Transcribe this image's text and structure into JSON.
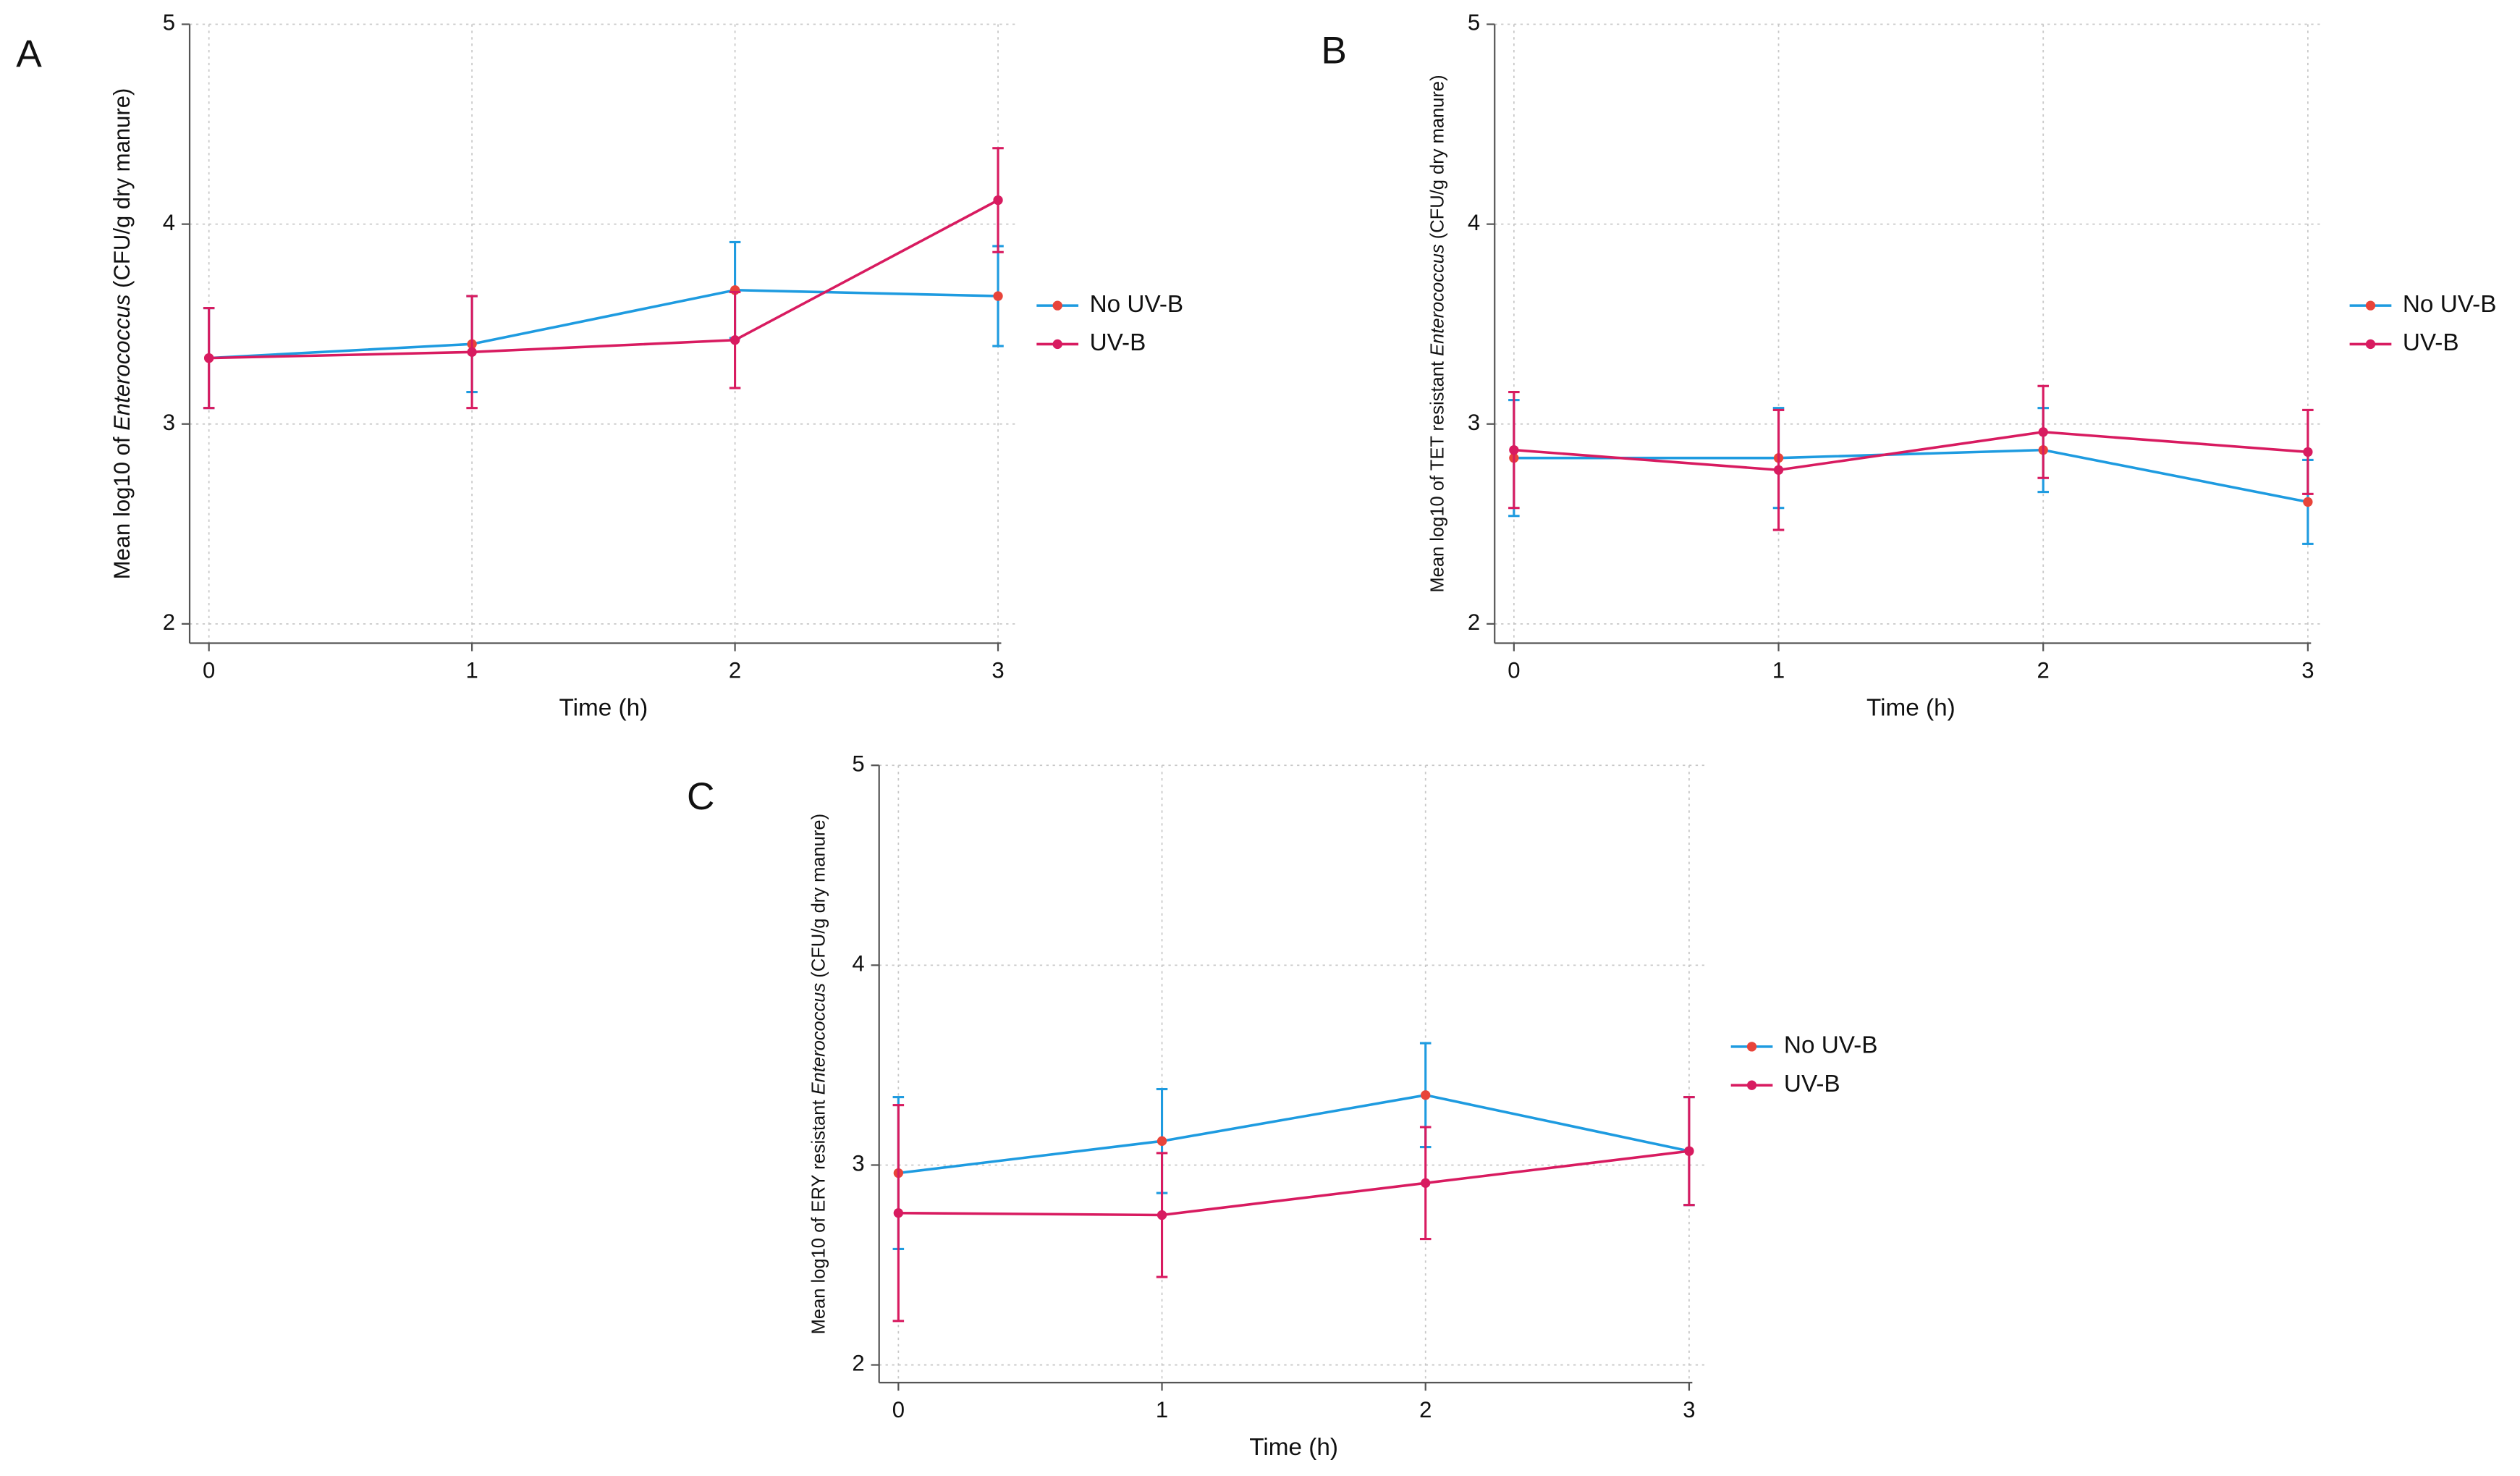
{
  "chart_data": [
    {
      "type": "line",
      "panel_label": "A",
      "ylabel": [
        "Mean log10 of ",
        "Enterococcus",
        " (CFU/g dry manure)"
      ],
      "xlabel": "Time (h)",
      "x": [
        0,
        1,
        2,
        3
      ],
      "xlim": [
        0,
        3
      ],
      "xticks": [
        0,
        1,
        2,
        3
      ],
      "ylim": [
        2,
        5
      ],
      "yticks": [
        2,
        3,
        4,
        5
      ],
      "grid": true,
      "legend": "right",
      "series": [
        {
          "name": "No UV-B",
          "color": "#1e9be0",
          "marker_color": "#e8443a",
          "values": [
            3.33,
            3.4,
            3.67,
            3.64
          ],
          "errors": [
            0.25,
            0.24,
            0.24,
            0.25
          ]
        },
        {
          "name": "UV-B",
          "color": "#d81b60",
          "marker_color": "#d81b60",
          "values": [
            3.33,
            3.36,
            3.42,
            4.12
          ],
          "errors": [
            0.25,
            0.28,
            0.24,
            0.26
          ]
        }
      ]
    },
    {
      "type": "line",
      "panel_label": "B",
      "ylabel": [
        "Mean log10 of TET resistant ",
        "Enterococcus",
        " (CFU/g dry manure)"
      ],
      "xlabel": "Time (h)",
      "x": [
        0,
        1,
        2,
        3
      ],
      "xlim": [
        0,
        3
      ],
      "xticks": [
        0,
        1,
        2,
        3
      ],
      "ylim": [
        2,
        5
      ],
      "yticks": [
        2,
        3,
        4,
        5
      ],
      "grid": true,
      "legend": "right",
      "series": [
        {
          "name": "No UV-B",
          "color": "#1e9be0",
          "marker_color": "#e8443a",
          "values": [
            2.83,
            2.83,
            2.87,
            2.61
          ],
          "errors": [
            0.29,
            0.25,
            0.21,
            0.21
          ]
        },
        {
          "name": "UV-B",
          "color": "#d81b60",
          "marker_color": "#d81b60",
          "values": [
            2.87,
            2.77,
            2.96,
            2.86
          ],
          "errors": [
            0.29,
            0.3,
            0.23,
            0.21
          ]
        }
      ]
    },
    {
      "type": "line",
      "panel_label": "C",
      "ylabel": [
        "Mean log10 of ERY resistant ",
        "Enterococcus",
        " (CFU/g dry manure)"
      ],
      "xlabel": "Time (h)",
      "x": [
        0,
        1,
        2,
        3
      ],
      "xlim": [
        0,
        3
      ],
      "xticks": [
        0,
        1,
        2,
        3
      ],
      "ylim": [
        2,
        5
      ],
      "yticks": [
        2,
        3,
        4,
        5
      ],
      "grid": true,
      "legend": "right",
      "series": [
        {
          "name": "No UV-B",
          "color": "#1e9be0",
          "marker_color": "#e8443a",
          "values": [
            2.96,
            3.12,
            3.35,
            3.07
          ],
          "errors": [
            0.38,
            0.26,
            0.26,
            0.27
          ]
        },
        {
          "name": "UV-B",
          "color": "#d81b60",
          "marker_color": "#d81b60",
          "values": [
            2.76,
            2.75,
            2.91,
            3.07
          ],
          "errors": [
            0.54,
            0.31,
            0.28,
            0.27
          ]
        }
      ]
    }
  ]
}
